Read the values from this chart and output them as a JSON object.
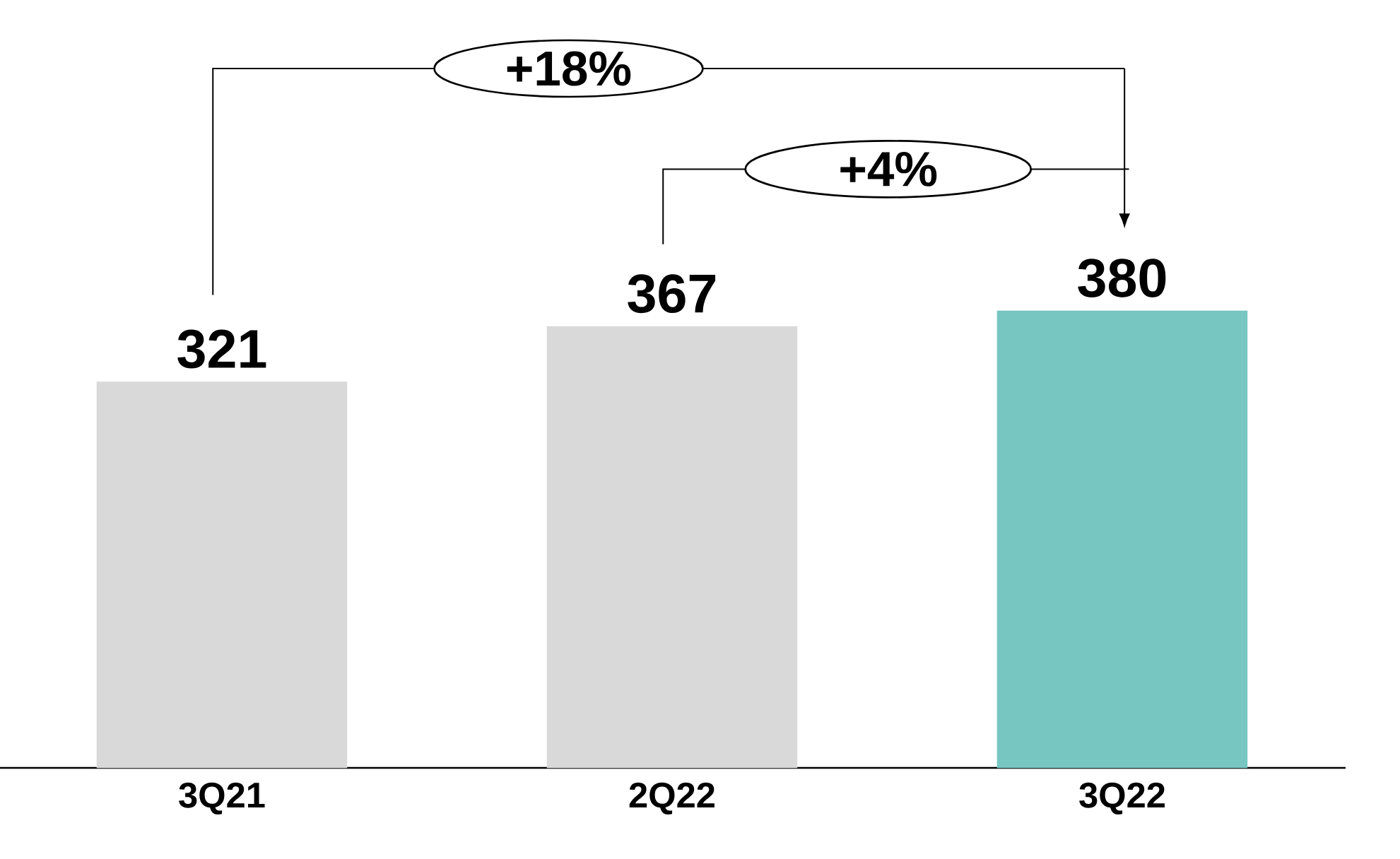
{
  "chart_data": {
    "type": "bar",
    "categories": [
      "3Q21",
      "2Q22",
      "3Q22"
    ],
    "values": [
      321,
      367,
      380
    ],
    "colors": [
      "#d9d9d9",
      "#d9d9d9",
      "#77c6c2"
    ],
    "data_labels": true,
    "annotations": [
      "+18%",
      "+4%"
    ]
  }
}
